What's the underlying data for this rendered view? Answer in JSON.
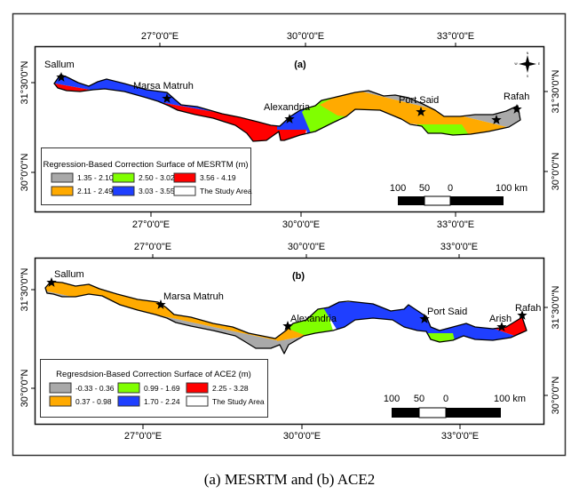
{
  "figure": {
    "caption": "(a) MESRTM and (b) ACE2",
    "scale_bar": {
      "labels": [
        "100",
        "50",
        "0",
        "100 km"
      ]
    },
    "compass": {
      "N": "N",
      "S": "S",
      "E": "E",
      "W": "W"
    },
    "axes": {
      "lon_ticks": [
        "27°0'0\"E",
        "30°0'0\"E",
        "33°0'0\"E"
      ],
      "lat_ticks": [
        "31°30'0\"N",
        "30°0'0\"N"
      ]
    }
  },
  "maps": [
    {
      "panel_label": "(a)",
      "legend": {
        "title": "Regression-Based Correction Surface of MESRTM (m)",
        "items": [
          {
            "label": "1.35 - 2.10",
            "color": "#a9a9a9"
          },
          {
            "label": "2.11 - 2.49",
            "color": "#ffaa00"
          },
          {
            "label": "2.50 - 3.02",
            "color": "#80ff00"
          },
          {
            "label": "3.03 - 3.55",
            "color": "#1f3fff"
          },
          {
            "label": "3.56 - 4.19",
            "color": "#ff0000"
          },
          {
            "label": "The Study Area",
            "color": "#ffffff"
          }
        ]
      },
      "cities": [
        "Sallum",
        "Marsa Matruh",
        "Alexandria",
        "Port Said",
        "Rafah"
      ]
    },
    {
      "panel_label": "(b)",
      "legend": {
        "title": "Regresdsion-Based Correction Surface of ACE2 (m)",
        "items": [
          {
            "label": "-0.33 - 0.36",
            "color": "#a9a9a9"
          },
          {
            "label": "0.37 - 0.98",
            "color": "#ffaa00"
          },
          {
            "label": "0.99 - 1.69",
            "color": "#80ff00"
          },
          {
            "label": "1.70 - 2.24",
            "color": "#1f3fff"
          },
          {
            "label": "2.25 - 3.28",
            "color": "#ff0000"
          },
          {
            "label": "The Study Area",
            "color": "#ffffff"
          }
        ]
      },
      "cities": [
        "Sallum",
        "Marsa Matruh",
        "Alexandria",
        "Port Said",
        "Arish",
        "Rafah"
      ]
    }
  ]
}
